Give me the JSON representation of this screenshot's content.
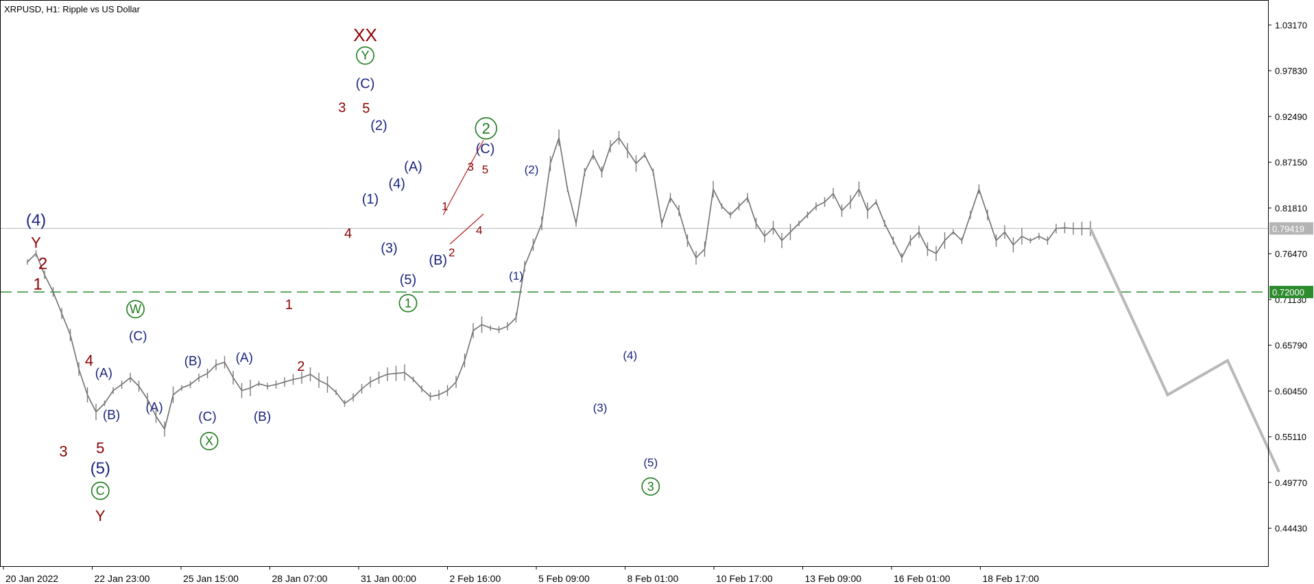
{
  "chart_data": {
    "type": "line",
    "title": "XRPUSD, H1:  Ripple vs US Dollar",
    "xlabel": "",
    "ylabel": "",
    "ylim": [
      0.4,
      1.06
    ],
    "grid": false,
    "y_ticks": [
      "1.03170",
      "0.97830",
      "0.92490",
      "0.87150",
      "0.81810",
      "0.76470",
      "0.71130",
      "0.65790",
      "0.60450",
      "0.55110",
      "0.49770",
      "0.44430"
    ],
    "x_ticks": [
      "20 Jan 2022",
      "22 Jan 23:00",
      "25 Jan 15:00",
      "28 Jan 07:00",
      "31 Jan 00:00",
      "2 Feb 16:00",
      "5 Feb 09:00",
      "8 Feb 01:00",
      "10 Feb 17:00",
      "13 Feb 09:00",
      "16 Feb 01:00",
      "18 Feb 17:00"
    ],
    "x_range": [
      0,
      153
    ],
    "current_price": {
      "value": 0.79419,
      "label": "0.79419",
      "color": "#b4b4b4"
    },
    "level": {
      "value": 0.72,
      "label": "0.72000",
      "color": "#2e8b2e"
    },
    "series": [
      {
        "kind": "price",
        "color": "#707070",
        "x": [
          0,
          1,
          2,
          3,
          4,
          5,
          6,
          7,
          8,
          9,
          10,
          11,
          12,
          13,
          14,
          15,
          16,
          17,
          18,
          19,
          20,
          21,
          22,
          23,
          24,
          25,
          26,
          27,
          28,
          29,
          30,
          31,
          32,
          33,
          34,
          35,
          36,
          37,
          38,
          39,
          40,
          41,
          42,
          43,
          44,
          45,
          46,
          47,
          48,
          49,
          50,
          51,
          52,
          53,
          54,
          55,
          56,
          57,
          58,
          59,
          60,
          61,
          62,
          63,
          64,
          65,
          66,
          67,
          68,
          69,
          70,
          71,
          72,
          73,
          74,
          75,
          76,
          77,
          78,
          79,
          80,
          81,
          82,
          83,
          84,
          85,
          86,
          87,
          88,
          89,
          90,
          91,
          92,
          93,
          94,
          95,
          96,
          97,
          98,
          99,
          100,
          101,
          102,
          103,
          104,
          105,
          106,
          107,
          108,
          109,
          110,
          111,
          112,
          113,
          114,
          115,
          116,
          117,
          118,
          119,
          120,
          121,
          122,
          123,
          124
        ],
        "y": [
          0.755,
          0.765,
          0.74,
          0.72,
          0.695,
          0.67,
          0.63,
          0.6,
          0.58,
          0.59,
          0.605,
          0.612,
          0.62,
          0.61,
          0.595,
          0.575,
          0.56,
          0.6,
          0.608,
          0.612,
          0.62,
          0.625,
          0.635,
          0.638,
          0.62,
          0.605,
          0.608,
          0.613,
          0.61,
          0.612,
          0.615,
          0.618,
          0.62,
          0.624,
          0.617,
          0.612,
          0.603,
          0.59,
          0.597,
          0.607,
          0.615,
          0.62,
          0.624,
          0.625,
          0.626,
          0.618,
          0.607,
          0.598,
          0.6,
          0.605,
          0.615,
          0.64,
          0.675,
          0.682,
          0.678,
          0.676,
          0.68,
          0.69,
          0.75,
          0.775,
          0.8,
          0.87,
          0.9,
          0.84,
          0.8,
          0.86,
          0.88,
          0.86,
          0.89,
          0.9,
          0.885,
          0.87,
          0.88,
          0.86,
          0.8,
          0.83,
          0.815,
          0.78,
          0.76,
          0.77,
          0.84,
          0.82,
          0.81,
          0.82,
          0.83,
          0.8,
          0.785,
          0.795,
          0.78,
          0.79,
          0.8,
          0.81,
          0.82,
          0.825,
          0.835,
          0.815,
          0.825,
          0.84,
          0.815,
          0.825,
          0.8,
          0.78,
          0.76,
          0.78,
          0.79,
          0.77,
          0.765,
          0.78,
          0.79,
          0.78,
          0.81,
          0.84,
          0.81,
          0.78,
          0.79,
          0.775,
          0.785,
          0.78,
          0.785,
          0.78,
          0.794,
          0.795,
          0.794,
          0.794,
          0.794
        ]
      },
      {
        "kind": "forecast",
        "color": "#b8b8b8",
        "x": [
          124,
          133,
          140,
          146
        ],
        "y": [
          0.79419,
          0.6,
          0.64,
          0.51
        ]
      }
    ],
    "annotations": [
      {
        "text": "(4)",
        "x": 1,
        "y": 0.8035,
        "color": "#1a237e",
        "size": 24
      },
      {
        "text": "Y",
        "x": 1,
        "y": 0.7775,
        "color": "#8b0000",
        "size": 22
      },
      {
        "text": "2",
        "x": 1.8,
        "y": 0.753,
        "color": "#8b0000",
        "size": 24
      },
      {
        "text": "1",
        "x": 1.2,
        "y": 0.729,
        "color": "#8b0000",
        "size": 24
      },
      {
        "text": "3",
        "x": 4.2,
        "y": 0.534,
        "color": "#8b0000",
        "size": 22
      },
      {
        "text": "4",
        "x": 7.2,
        "y": 0.64,
        "color": "#8b0000",
        "size": 22
      },
      {
        "text": "5",
        "x": 8.5,
        "y": 0.538,
        "color": "#8b0000",
        "size": 22
      },
      {
        "text": "(5)",
        "x": 8.5,
        "y": 0.514,
        "color": "#1a237e",
        "size": 24
      },
      {
        "text": "C",
        "x": 8.5,
        "y": 0.488,
        "color": "#1b7a1b",
        "size": 18,
        "circle": true
      },
      {
        "text": "Y",
        "x": 8.5,
        "y": 0.459,
        "color": "#8b0000",
        "size": 22
      },
      {
        "text": "(A)",
        "x": 8.9,
        "y": 0.625,
        "color": "#1a237e",
        "size": 19
      },
      {
        "text": "(B)",
        "x": 9.8,
        "y": 0.576,
        "color": "#1a237e",
        "size": 19
      },
      {
        "text": "W",
        "x": 12.6,
        "y": 0.7,
        "color": "#1b7a1b",
        "size": 18,
        "circle": true
      },
      {
        "text": "(C)",
        "x": 12.9,
        "y": 0.668,
        "color": "#1a237e",
        "size": 19
      },
      {
        "text": "(A)",
        "x": 14.8,
        "y": 0.585,
        "color": "#1a237e",
        "size": 19
      },
      {
        "text": "(B)",
        "x": 19.3,
        "y": 0.639,
        "color": "#1a237e",
        "size": 19
      },
      {
        "text": "(C)",
        "x": 21,
        "y": 0.574,
        "color": "#1a237e",
        "size": 19
      },
      {
        "text": "X",
        "x": 21.2,
        "y": 0.546,
        "color": "#1b7a1b",
        "size": 18,
        "circle": true
      },
      {
        "text": "(A)",
        "x": 25.3,
        "y": 0.643,
        "color": "#1a237e",
        "size": 19
      },
      {
        "text": "(B)",
        "x": 27.4,
        "y": 0.574,
        "color": "#1a237e",
        "size": 19
      },
      {
        "text": "1",
        "x": 30.5,
        "y": 0.705,
        "color": "#8b0000",
        "size": 20
      },
      {
        "text": "2",
        "x": 31.9,
        "y": 0.633,
        "color": "#8b0000",
        "size": 20
      },
      {
        "text": "3",
        "x": 36.7,
        "y": 0.935,
        "color": "#8b0000",
        "size": 20
      },
      {
        "text": "4",
        "x": 37.4,
        "y": 0.788,
        "color": "#8b0000",
        "size": 20
      },
      {
        "text": "XX",
        "x": 39.4,
        "y": 1.02,
        "color": "#8b0000",
        "size": 26
      },
      {
        "text": "Y",
        "x": 39.4,
        "y": 0.996,
        "color": "#1b7a1b",
        "size": 18,
        "circle": true
      },
      {
        "text": "(C)",
        "x": 39.4,
        "y": 0.963,
        "color": "#1a237e",
        "size": 20
      },
      {
        "text": "5",
        "x": 39.5,
        "y": 0.934,
        "color": "#8b0000",
        "size": 20
      },
      {
        "text": "(2)",
        "x": 41,
        "y": 0.914,
        "color": "#1a237e",
        "size": 20
      },
      {
        "text": "(1)",
        "x": 40,
        "y": 0.828,
        "color": "#1a237e",
        "size": 20
      },
      {
        "text": "(4)",
        "x": 43.1,
        "y": 0.846,
        "color": "#1a237e",
        "size": 20
      },
      {
        "text": "(3)",
        "x": 42.2,
        "y": 0.771,
        "color": "#1a237e",
        "size": 20
      },
      {
        "text": "(A)",
        "x": 45,
        "y": 0.866,
        "color": "#1a237e",
        "size": 20
      },
      {
        "text": "(5)",
        "x": 44.4,
        "y": 0.734,
        "color": "#1a237e",
        "size": 20
      },
      {
        "text": "1",
        "x": 44.4,
        "y": 0.707,
        "color": "#1b7a1b",
        "size": 18,
        "circle": true
      },
      {
        "text": "(B)",
        "x": 47.9,
        "y": 0.757,
        "color": "#1a237e",
        "size": 20
      },
      {
        "text": "1",
        "x": 48.7,
        "y": 0.82,
        "color": "#8b0000",
        "size": 17
      },
      {
        "text": "2",
        "x": 49.5,
        "y": 0.766,
        "color": "#8b0000",
        "size": 17
      },
      {
        "text": "3",
        "x": 51.7,
        "y": 0.866,
        "color": "#8b0000",
        "size": 17
      },
      {
        "text": "4",
        "x": 52.7,
        "y": 0.792,
        "color": "#8b0000",
        "size": 17
      },
      {
        "text": "5",
        "x": 53.4,
        "y": 0.863,
        "color": "#8b0000",
        "size": 17
      },
      {
        "text": "(C)",
        "x": 53.4,
        "y": 0.887,
        "color": "#1a237e",
        "size": 20
      },
      {
        "text": "2",
        "x": 53.5,
        "y": 0.911,
        "color": "#1b7a1b",
        "size": 22,
        "circle": true
      },
      {
        "text": "(2)",
        "x": 58.8,
        "y": 0.863,
        "color": "#1a237e",
        "size": 17
      },
      {
        "text": "(1)",
        "x": 57,
        "y": 0.739,
        "color": "#1a237e",
        "size": 17
      },
      {
        "text": "(3)",
        "x": 66.8,
        "y": 0.585,
        "color": "#1a237e",
        "size": 17
      },
      {
        "text": "(4)",
        "x": 70.3,
        "y": 0.646,
        "color": "#1a237e",
        "size": 17
      },
      {
        "text": "(5)",
        "x": 72.7,
        "y": 0.521,
        "color": "#1a237e",
        "size": 17
      },
      {
        "text": "3",
        "x": 72.7,
        "y": 0.493,
        "color": "#1b7a1b",
        "size": 18,
        "circle": true
      }
    ],
    "trendlines": [
      {
        "color": "#b22222",
        "x": [
          48.5,
          53.2
        ],
        "y": [
          0.81,
          0.897
        ]
      },
      {
        "color": "#b22222",
        "x": [
          49.3,
          53.2
        ],
        "y": [
          0.776,
          0.811
        ]
      }
    ]
  }
}
